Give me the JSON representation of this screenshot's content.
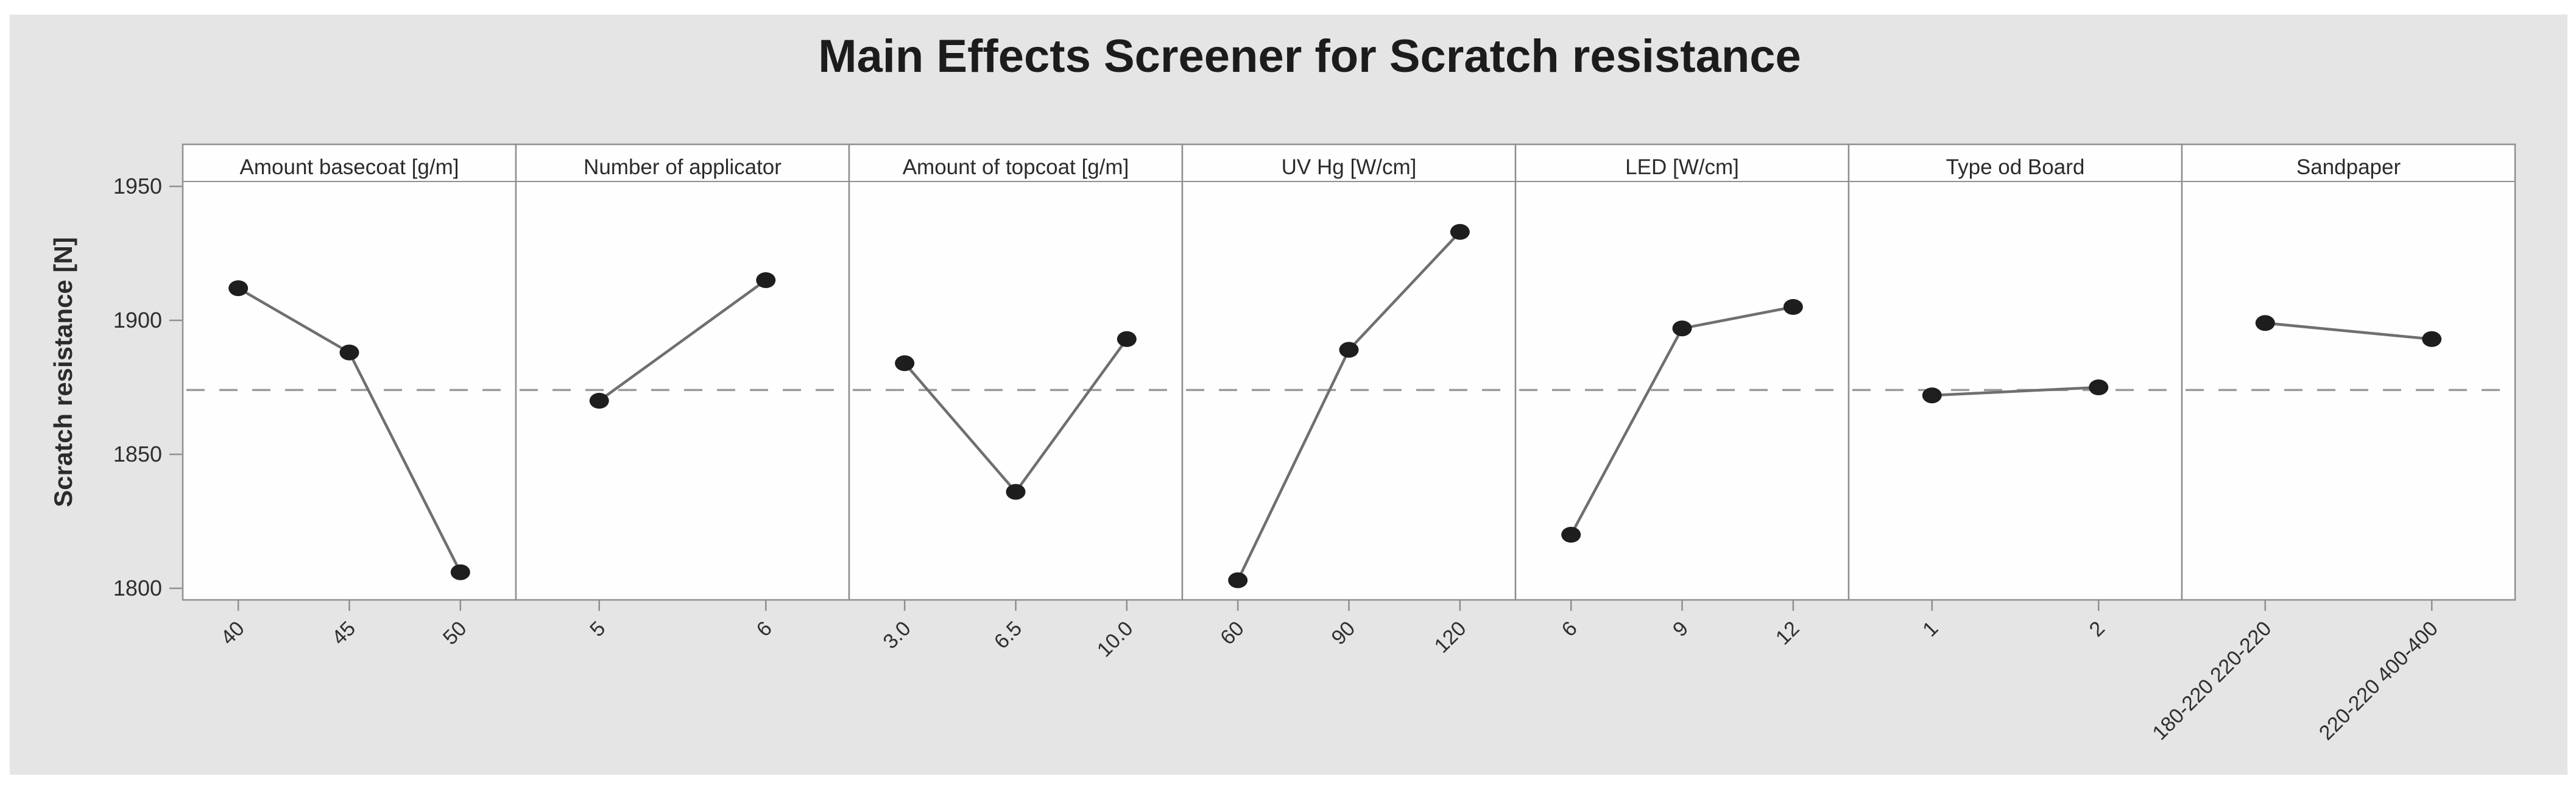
{
  "figure": {
    "page_color": "#ffffff",
    "background_color": "#e5e5e5"
  },
  "chart_data": {
    "type": "line",
    "title": "Main Effects Screener for Scratch resistance",
    "ylabel": "Scratch resistance [N]",
    "xlabel": "",
    "y_ticks": [
      1950,
      1900,
      1850,
      1800
    ],
    "ylim": [
      1796,
      1966
    ],
    "reference_line": 1874,
    "grid": false,
    "legend": "none",
    "marker_style": "filled-circle",
    "panels": [
      {
        "title": "Amount basecoat [g/m]",
        "categories": [
          "40",
          "45",
          "50"
        ],
        "values": [
          1912,
          1888,
          1806
        ]
      },
      {
        "title": "Number of applicator",
        "categories": [
          "5",
          "6"
        ],
        "values": [
          1870,
          1915
        ]
      },
      {
        "title": "Amount of topcoat [g/m]",
        "categories": [
          "3.0",
          "6.5",
          "10.0"
        ],
        "values": [
          1884,
          1836,
          1893
        ]
      },
      {
        "title": "UV Hg  [W/cm]",
        "categories": [
          "60",
          "90",
          "120"
        ],
        "values": [
          1803,
          1889,
          1933
        ]
      },
      {
        "title": "LED  [W/cm]",
        "categories": [
          "6",
          "9",
          "12"
        ],
        "values": [
          1820,
          1897,
          1905
        ]
      },
      {
        "title": "Type od Board",
        "categories": [
          "1",
          "2"
        ],
        "values": [
          1872,
          1875
        ]
      },
      {
        "title": "Sandpaper",
        "categories": [
          "180-220 220-220",
          "220-220 400-400"
        ],
        "values": [
          1899,
          1893
        ]
      }
    ],
    "colors": {
      "marker": "#1e1e1e",
      "line": "#6f6f6f",
      "reference_line": "#9a9a9a",
      "panel_border": "#8f8f8f",
      "panel_fill": "#fefefe",
      "tick": "#8f8f8f",
      "text": "#2b2b2b"
    }
  }
}
